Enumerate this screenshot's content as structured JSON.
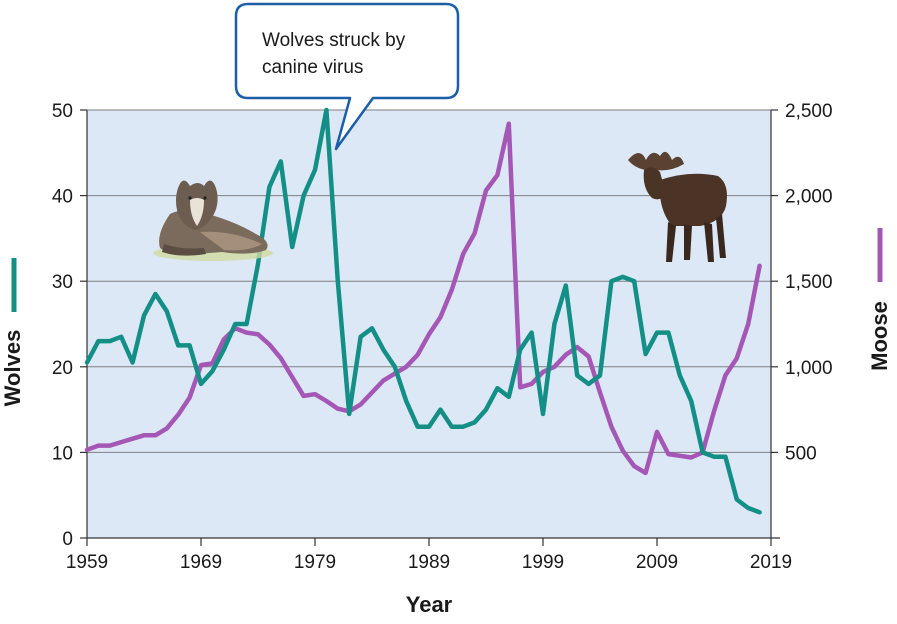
{
  "chart_data": {
    "type": "line",
    "xlabel": "Year",
    "ylabel_left": "Wolves",
    "ylabel_right": "Moose",
    "xlim": [
      1959,
      2019
    ],
    "ylim_left": [
      0,
      50
    ],
    "ylim_right": [
      0,
      2500
    ],
    "x_ticks": [
      "1959",
      "1969",
      "1979",
      "1989",
      "1999",
      "2009",
      "2019"
    ],
    "y_left_ticks": [
      "0",
      "10",
      "20",
      "30",
      "40",
      "50"
    ],
    "y_right_ticks": [
      "500",
      "1,000",
      "1,500",
      "2,000",
      "2,500"
    ],
    "grid": true,
    "background": "#dde8f7",
    "series": [
      {
        "name": "Wolves",
        "axis": "left",
        "color": "#138f86",
        "x": [
          1959,
          1960,
          1961,
          1962,
          1963,
          1964,
          1965,
          1966,
          1967,
          1968,
          1969,
          1970,
          1971,
          1972,
          1973,
          1974,
          1975,
          1976,
          1977,
          1978,
          1979,
          1980,
          1981,
          1982,
          1983,
          1984,
          1985,
          1986,
          1987,
          1988,
          1989,
          1990,
          1991,
          1992,
          1993,
          1994,
          1995,
          1996,
          1997,
          1998,
          1999,
          2000,
          2001,
          2002,
          2003,
          2004,
          2005,
          2006,
          2007,
          2008,
          2009,
          2010,
          2011,
          2012,
          2013,
          2014,
          2015,
          2016,
          2017,
          2018
        ],
        "values": [
          20.5,
          23,
          23,
          23.5,
          20.5,
          26,
          28.5,
          26.5,
          22.5,
          22.5,
          18,
          19.5,
          22,
          25,
          25,
          32,
          41,
          44,
          34,
          40,
          43,
          50,
          30,
          14.5,
          23.5,
          24.5,
          22,
          20,
          16,
          13,
          13,
          15,
          13,
          13,
          13.5,
          15,
          17.5,
          16.5,
          22,
          24,
          14.5,
          25,
          29.5,
          19,
          18,
          19,
          30,
          30.5,
          30,
          21.5,
          24,
          24,
          19,
          16,
          10,
          9.5,
          9.5,
          4.5,
          3.5,
          3
        ]
      },
      {
        "name": "Moose",
        "axis": "right",
        "color": "#a457b4",
        "x": [
          1959,
          1960,
          1961,
          1962,
          1963,
          1964,
          1965,
          1966,
          1967,
          1968,
          1969,
          1970,
          1971,
          1972,
          1973,
          1974,
          1975,
          1976,
          1977,
          1978,
          1979,
          1980,
          1981,
          1982,
          1983,
          1984,
          1985,
          1986,
          1987,
          1988,
          1989,
          1990,
          1991,
          1992,
          1993,
          1994,
          1995,
          1996,
          1997,
          1998,
          1999,
          2000,
          2001,
          2002,
          2003,
          2004,
          2005,
          2006,
          2007,
          2008,
          2009,
          2010,
          2011,
          2012,
          2013,
          2014,
          2015,
          2016,
          2017,
          2018
        ],
        "values": [
          515,
          540,
          540,
          560,
          580,
          600,
          600,
          640,
          720,
          820,
          1010,
          1020,
          1160,
          1225,
          1200,
          1190,
          1130,
          1050,
          940,
          830,
          840,
          800,
          755,
          740,
          780,
          850,
          920,
          960,
          1000,
          1070,
          1190,
          1290,
          1450,
          1660,
          1780,
          2030,
          2120,
          2420,
          880,
          900,
          970,
          1000,
          1070,
          1115,
          1060,
          850,
          650,
          510,
          420,
          380,
          620,
          490,
          480,
          470,
          500,
          740,
          950,
          1050,
          1250,
          1590
        ]
      }
    ],
    "annotations": [
      {
        "text_lines": [
          "Wolves struck by",
          "canine virus"
        ],
        "points_to_year": 1981,
        "points_to_series": "Wolves"
      }
    ]
  }
}
